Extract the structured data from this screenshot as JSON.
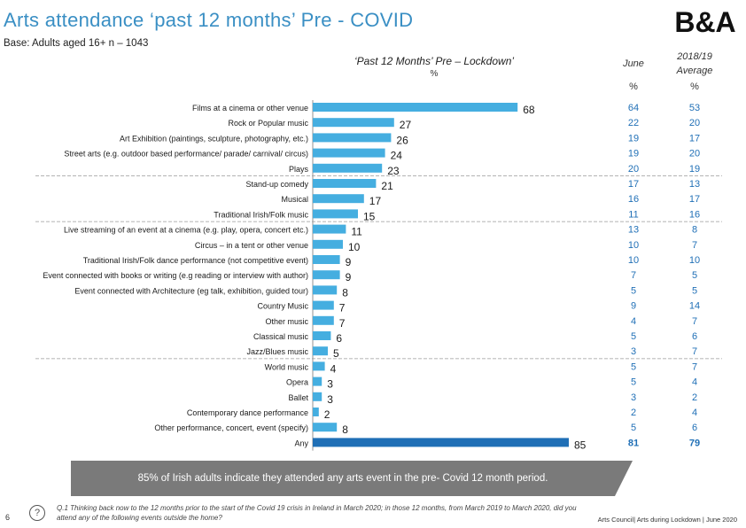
{
  "header": {
    "title": "Arts attendance ‘past 12 months’ Pre - COVID",
    "base": "Base: Adults aged 16+ n – 1043",
    "logo_text": "B&A",
    "chart_subtitle": "‘Past 12 Months’ Pre – Lockdown’",
    "percent_label": "%"
  },
  "columns": {
    "june_label": "June",
    "june_unit": "%",
    "avg_label_line1": "2018/19",
    "avg_label_line2": "Average",
    "avg_unit": "%"
  },
  "chart_data": {
    "type": "bar",
    "orientation": "horizontal",
    "title": "‘Past 12 Months’ Pre – Lockdown’",
    "xlabel": "%",
    "xlim": [
      0,
      100
    ],
    "categories": [
      "Films at a cinema or other venue",
      "Rock or Popular music",
      "Art Exhibition (paintings, sculpture, photography, etc.)",
      "Street arts (e.g. outdoor based performance/ parade/ carnival/ circus)",
      "Plays",
      "Stand-up comedy",
      "Musical",
      "Traditional Irish/Folk music",
      "Live streaming of an event at a cinema (e.g. play, opera, concert etc.)",
      "Circus – in a tent or other venue",
      "Traditional Irish/Folk dance performance (not competitive event)",
      "Event connected with books or writing (e.g reading or interview with author)",
      "Event connected with Architecture (eg talk, exhibition, guided tour)",
      "Country Music",
      "Other music",
      "Classical music",
      "Jazz/Blues music",
      "World music",
      "Opera",
      "Ballet",
      "Contemporary dance performance",
      "Other performance, concert, event (specify)",
      "Any"
    ],
    "values": [
      68,
      27,
      26,
      24,
      23,
      21,
      17,
      15,
      11,
      10,
      9,
      9,
      8,
      7,
      7,
      6,
      5,
      4,
      3,
      3,
      2,
      8,
      85
    ],
    "june": [
      64,
      22,
      19,
      19,
      20,
      17,
      16,
      11,
      13,
      10,
      10,
      7,
      5,
      9,
      4,
      5,
      3,
      5,
      5,
      3,
      2,
      5,
      81
    ],
    "average_2018_19": [
      53,
      20,
      17,
      20,
      19,
      13,
      17,
      16,
      8,
      7,
      10,
      5,
      5,
      14,
      7,
      6,
      7,
      7,
      4,
      2,
      4,
      6,
      79
    ],
    "highlight_category": "Any",
    "colors": {
      "bar": "#45aee0",
      "any_bar": "#1f6fb6",
      "text_blue": "#1f6fb6",
      "divider": "#9a9a9a"
    },
    "dividers_after": [
      "Plays",
      "Traditional Irish/Folk music",
      "Jazz/Blues music"
    ]
  },
  "callout": "85% of Irish adults indicate they attended any arts event in the pre- Covid 12 month period.",
  "footer": {
    "page_number": "6",
    "question_icon": "?",
    "question_text": "Q.1   Thinking back now to the 12 months prior to the start of the Covid 19 crisis in Ireland in March 2020; in those 12 months,     from March 2019 to March 2020, did you attend any of the following events outside the home?",
    "right_text": "Arts Council| Arts during Lockdown | June 2020"
  }
}
